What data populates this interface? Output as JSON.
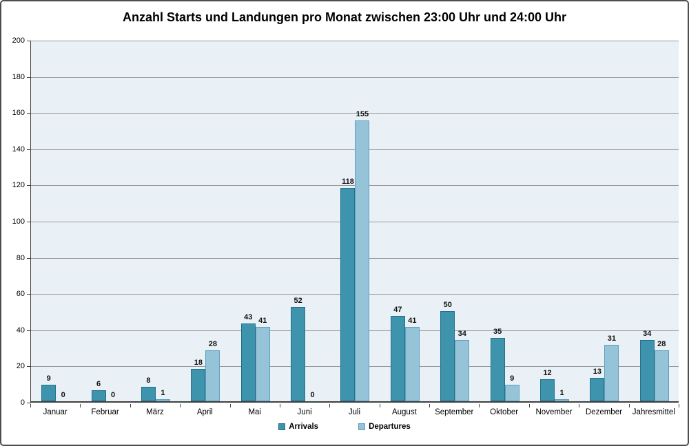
{
  "chart_data": {
    "type": "bar",
    "title": "Anzahl Starts und Landungen pro Monat zwischen 23:00 Uhr und 24:00 Uhr",
    "categories": [
      "Januar",
      "Februar",
      "März",
      "April",
      "Mai",
      "Juni",
      "Juli",
      "August",
      "September",
      "Oktober",
      "November",
      "Dezember",
      "Jahresmittel"
    ],
    "series": [
      {
        "name": "Arrivals",
        "fill": "#3e93ad",
        "border": "#256e88",
        "values": [
          9,
          6,
          8,
          18,
          43,
          52,
          118,
          47,
          50,
          35,
          12,
          13,
          34
        ]
      },
      {
        "name": "Departures",
        "fill": "#95c4d8",
        "border": "#5f9ebc",
        "values": [
          0,
          0,
          1,
          28,
          41,
          0,
          155,
          41,
          34,
          9,
          1,
          31,
          28
        ]
      }
    ],
    "xlabel": "",
    "ylabel": "",
    "ylim": [
      0,
      200
    ],
    "ytick_step": 20,
    "grid": true,
    "legend_position": "bottom-center",
    "colors": {
      "plot_background": "#e9f0f6",
      "gridline": "#999999",
      "axis": "#3f3f3f",
      "canvas_border": "#4d4d4d"
    }
  }
}
